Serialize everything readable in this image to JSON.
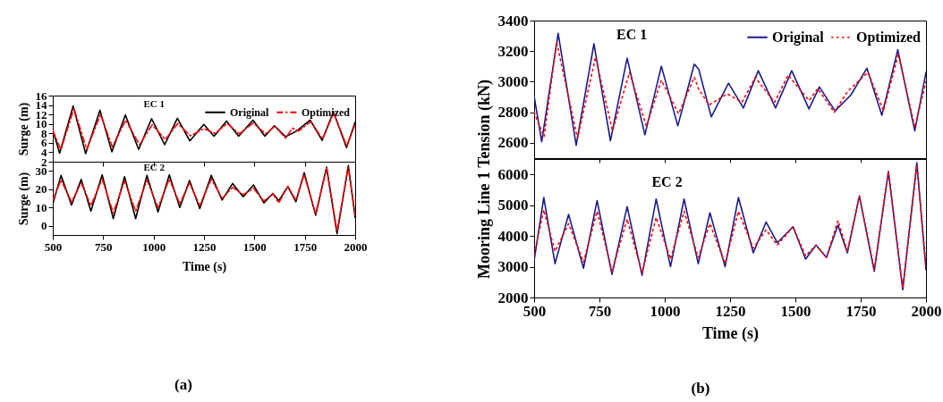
{
  "chart_data": [
    {
      "type": "line",
      "title": "EC 1",
      "ylabel": "Surge (m)",
      "xlim": [
        500,
        2000
      ],
      "xticks": [
        500,
        750,
        1000,
        1250,
        1500,
        1750,
        2000
      ],
      "ylim": [
        2,
        16
      ],
      "yticks": [
        2,
        4,
        6,
        8,
        10,
        12,
        14,
        16
      ],
      "grid": false,
      "legend": "top right",
      "tick_labels": "y",
      "series": [
        {
          "name": "Original",
          "color": "#000000",
          "line_style": "solid",
          "x": [
            500,
            534,
            601,
            663,
            734,
            793,
            860,
            926,
            990,
            1055,
            1118,
            1180,
            1249,
            1300,
            1362,
            1422,
            1493,
            1552,
            1599,
            1655,
            1710,
            1777,
            1836,
            1892,
            1957,
            2000
          ],
          "values": [
            8.7,
            3.8,
            13.8,
            3.7,
            12.9,
            4.1,
            11.9,
            4.6,
            11.1,
            5.6,
            11.2,
            6.4,
            9.9,
            7.4,
            10.6,
            7.4,
            10.8,
            7.4,
            9.6,
            7.3,
            8.5,
            10.8,
            6.5,
            12.6,
            5.0,
            10.4
          ]
        },
        {
          "name": "Optimized",
          "color": "#ff0000",
          "line_style": "dashed",
          "x": [
            500,
            540,
            605,
            668,
            737,
            795,
            862,
            930,
            993,
            1058,
            1120,
            1183,
            1250,
            1305,
            1365,
            1425,
            1495,
            1555,
            1602,
            1655,
            1688,
            1720,
            1780,
            1838,
            1893,
            1958,
            2000
          ],
          "values": [
            8.6,
            4.5,
            13.3,
            4.6,
            12.0,
            5.2,
            10.8,
            5.6,
            9.8,
            6.7,
            10.1,
            7.5,
            9.0,
            8.0,
            10.1,
            7.9,
            10.2,
            7.9,
            9.5,
            7.0,
            9.1,
            8.5,
            10.5,
            6.8,
            12.3,
            5.3,
            9.9
          ]
        }
      ]
    },
    {
      "type": "line",
      "title": "EC 2",
      "xlabel": "Time (s)",
      "ylabel": "Surge (m)",
      "xlim": [
        500,
        2000
      ],
      "xticks": [
        500,
        750,
        1000,
        1250,
        1500,
        1750,
        2000
      ],
      "ylim": [
        -5,
        35
      ],
      "yticks": [
        0,
        10,
        20,
        30
      ],
      "grid": false,
      "annotations": [
        "(a)"
      ],
      "series": [
        {
          "color": "#000000",
          "line_style": "solid",
          "x": [
            500,
            541,
            593,
            641,
            689,
            745,
            800,
            856,
            911,
            967,
            1022,
            1078,
            1130,
            1178,
            1229,
            1286,
            1340,
            1392,
            1444,
            1496,
            1547,
            1592,
            1621,
            1666,
            1706,
            1747,
            1804,
            1858,
            1910,
            1966,
            2000
          ],
          "values": [
            12,
            27.5,
            11.3,
            25.3,
            8,
            27.8,
            3.9,
            26.8,
            3.9,
            27.5,
            7.6,
            27.8,
            10,
            24.7,
            9.4,
            27.5,
            14.1,
            23.1,
            15.8,
            22.3,
            12.5,
            17.7,
            13.7,
            21.4,
            13.1,
            29,
            5.8,
            32,
            -4.3,
            32.9,
            4.5
          ]
        },
        {
          "color": "#ff0000",
          "line_style": "dashed",
          "x": [
            500,
            541,
            593,
            641,
            689,
            745,
            800,
            856,
            911,
            967,
            1022,
            1078,
            1130,
            1178,
            1229,
            1286,
            1340,
            1392,
            1444,
            1496,
            1547,
            1592,
            1621,
            1666,
            1706,
            1747,
            1804,
            1858,
            1910,
            1966,
            2000
          ],
          "values": [
            14,
            25,
            13,
            23.5,
            11,
            25.5,
            7,
            24.5,
            8,
            25,
            10,
            25.5,
            12,
            23.5,
            11,
            25.5,
            15,
            21,
            17,
            20.5,
            13.5,
            17.5,
            12.5,
            21.5,
            14,
            28,
            6.5,
            31.5,
            -3,
            32,
            6
          ]
        }
      ]
    },
    {
      "type": "line",
      "title": "EC 1",
      "xlim": [
        500,
        2000
      ],
      "xticks": [
        500,
        750,
        1000,
        1250,
        1500,
        1750,
        2000
      ],
      "ylim": [
        2500,
        3400
      ],
      "yticks": [
        2600,
        2800,
        3000,
        3200,
        3400
      ],
      "grid": false,
      "legend": "top right",
      "tick_labels": "y",
      "series": [
        {
          "name": "Original",
          "color": "#1a1a8c",
          "line_style": "solid",
          "x": [
            500,
            529,
            592,
            661,
            729,
            792,
            856,
            924,
            987,
            1050,
            1113,
            1130,
            1178,
            1244,
            1301,
            1358,
            1424,
            1486,
            1552,
            1592,
            1652,
            1712,
            1774,
            1831,
            1892,
            1957,
            2000
          ],
          "values": [
            2906,
            2608,
            3316,
            2584,
            3248,
            2614,
            3154,
            2653,
            3101,
            2711,
            3115,
            3082,
            2770,
            2990,
            2828,
            3072,
            2828,
            3072,
            2822,
            2965,
            2809,
            2912,
            3088,
            2780,
            3209,
            2678,
            3062
          ]
        },
        {
          "name": "Optimized",
          "color": "#ff0000",
          "line_style": "dotted",
          "x": [
            500,
            538,
            586,
            666,
            735,
            800,
            865,
            930,
            987,
            1053,
            1113,
            1130,
            1170,
            1239,
            1296,
            1347,
            1370,
            1421,
            1472,
            1552,
            1586,
            1649,
            1700,
            1778,
            1837,
            1894,
            1957,
            2000
          ],
          "values": [
            2800,
            2640,
            3260,
            2630,
            3160,
            2680,
            3060,
            2710,
            3010,
            2790,
            3030,
            2950,
            2848,
            2920,
            2867,
            3029,
            2975,
            2867,
            3043,
            2877,
            2955,
            2799,
            2936,
            3062,
            2809,
            3180,
            2702,
            3000
          ]
        }
      ]
    },
    {
      "type": "line",
      "xlabel": "Time (s)",
      "ylabel": "Mooring Line 1 Tension (kN)",
      "title": "EC 2",
      "xlim": [
        500,
        2000
      ],
      "xticks": [
        500,
        750,
        1000,
        1250,
        1500,
        1750,
        2000
      ],
      "ylim": [
        2000,
        6500
      ],
      "yticks": [
        2000,
        3000,
        4000,
        5000,
        6000
      ],
      "grid": false,
      "annotations": [
        "(b)"
      ],
      "series": [
        {
          "color": "#1a1a8c",
          "line_style": "solid",
          "x": [
            500,
            537,
            580,
            632,
            689,
            741,
            798,
            856,
            913,
            967,
            1022,
            1074,
            1128,
            1173,
            1231,
            1282,
            1339,
            1388,
            1431,
            1491,
            1539,
            1579,
            1619,
            1663,
            1699,
            1745,
            1802,
            1856,
            1911,
            1965,
            2000
          ],
          "values": [
            3200,
            5250,
            3100,
            4700,
            2950,
            5150,
            2750,
            4950,
            2720,
            5200,
            3000,
            5200,
            3100,
            4750,
            3000,
            5250,
            3450,
            4450,
            3780,
            4300,
            3250,
            3700,
            3300,
            4350,
            3450,
            5300,
            2850,
            6100,
            2250,
            6380,
            2900
          ]
        },
        {
          "color": "#ff0000",
          "line_style": "dotted",
          "x": [
            500,
            537,
            580,
            632,
            689,
            741,
            798,
            856,
            913,
            967,
            1022,
            1074,
            1128,
            1173,
            1231,
            1282,
            1339,
            1388,
            1431,
            1491,
            1539,
            1579,
            1619,
            1663,
            1699,
            1745,
            1802,
            1856,
            1911,
            1965,
            2000
          ],
          "values": [
            3400,
            4850,
            3500,
            4400,
            3150,
            4800,
            2850,
            4550,
            2800,
            4600,
            3250,
            4800,
            3300,
            4400,
            3100,
            4800,
            3600,
            4200,
            3700,
            4300,
            3350,
            3700,
            3300,
            4500,
            3500,
            5300,
            2900,
            6100,
            2300,
            6300,
            3000
          ]
        }
      ]
    }
  ]
}
